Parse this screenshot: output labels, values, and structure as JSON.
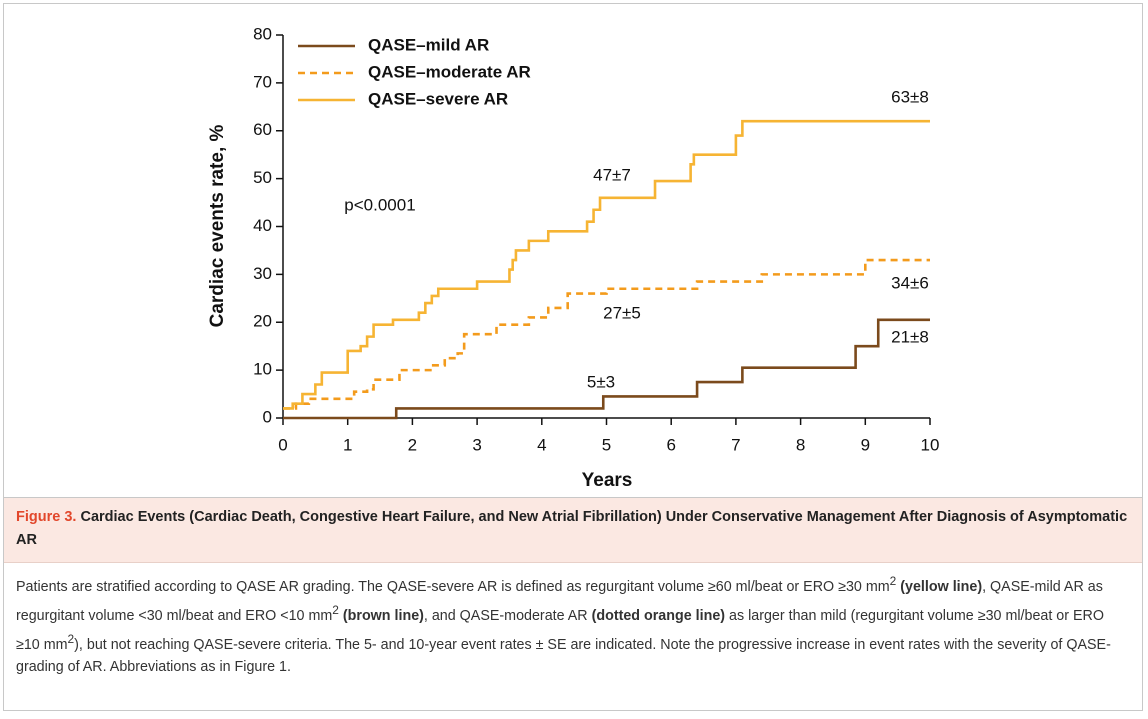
{
  "chart_data": {
    "type": "step",
    "xlabel": "Years",
    "ylabel": "Cardiac events rate, %",
    "xlim": [
      0,
      10
    ],
    "xticks": [
      0,
      1,
      2,
      3,
      4,
      5,
      6,
      7,
      8,
      9,
      10
    ],
    "ylim": [
      0,
      80
    ],
    "yticks": [
      0,
      10,
      20,
      30,
      40,
      50,
      60,
      70,
      80
    ],
    "series": [
      {
        "name": "QASE–mild AR",
        "color": "#7b4a1c",
        "dash": "solid",
        "x": [
          0,
          1.75,
          4.95,
          6.4,
          7.1,
          8.85,
          9.2,
          10
        ],
        "values": [
          0,
          2,
          4.5,
          7.5,
          10.5,
          15,
          20.5,
          20.5
        ]
      },
      {
        "name": "QASE–moderate AR",
        "color": "#f39b1c",
        "dash": "dashed",
        "x": [
          0,
          0.2,
          0.4,
          1.1,
          1.3,
          1.4,
          1.8,
          2.3,
          2.5,
          2.7,
          2.8,
          3.3,
          3.8,
          4.1,
          4.4,
          5.0,
          6.4,
          7.4,
          9.0,
          10
        ],
        "values": [
          2,
          3,
          4,
          5.5,
          6,
          8,
          10,
          11,
          12.5,
          13.5,
          17.5,
          19.5,
          21,
          23,
          26,
          27,
          28.5,
          30,
          33,
          33
        ]
      },
      {
        "name": "QASE–severe AR",
        "color": "#f6b433",
        "dash": "solid",
        "x": [
          0,
          0.15,
          0.3,
          0.5,
          0.6,
          1.0,
          1.2,
          1.3,
          1.4,
          1.7,
          2.1,
          2.2,
          2.3,
          2.4,
          3.0,
          3.5,
          3.55,
          3.6,
          3.8,
          4.1,
          4.7,
          4.8,
          4.9,
          5.75,
          6.3,
          6.35,
          7.0,
          7.1,
          10
        ],
        "values": [
          2,
          3,
          5,
          7,
          9.5,
          14,
          15,
          17,
          19.5,
          20.5,
          22,
          24,
          25.5,
          27,
          28.5,
          31,
          33,
          35,
          37,
          39,
          41,
          43.5,
          46,
          49.5,
          53,
          55,
          59,
          62,
          62
        ]
      }
    ],
    "annotations": [
      "p<0.0001",
      "63±8",
      "47±7",
      "34±6",
      "27±5",
      "21±8",
      "5±3"
    ]
  },
  "caption": {
    "label": "Figure 3.",
    "title": "Cardiac Events (Cardiac Death, Congestive Heart Failure, and New Atrial Fibrillation) Under Conservative Management After Diagnosis of Asymptomatic AR",
    "body": [
      "Patients are stratified according to QASE AR grading. The QASE-severe AR is defined as regurgitant volume ≥60 ml/beat or ERO ≥30 mm",
      "2",
      " (yellow line)",
      ", QASE-mild AR as regurgitant volume <30 ml/beat and ERO <10 mm",
      "2",
      " (brown line)",
      ", and QASE-moderate AR ",
      "(dotted orange line)",
      " as larger than mild (regurgitant volume ≥30 ml/beat or ERO ≥10 mm",
      "2",
      "), but not reaching QASE-severe criteria. The 5- and 10-year event rates ± SE are indicated. Note the progressive increase in event rates with the severity of QASE-grading of AR. Abbreviations as in Figure 1."
    ]
  }
}
